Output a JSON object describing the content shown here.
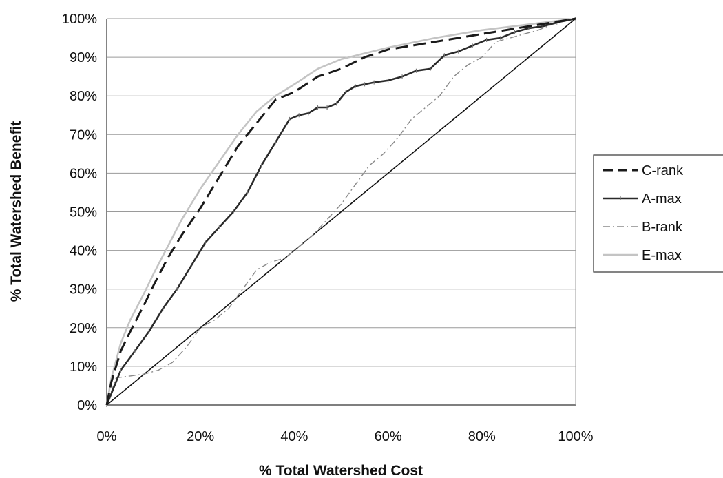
{
  "chart_data": {
    "type": "line",
    "title": "",
    "xlabel": "% Total Watershed Cost",
    "ylabel": "% Total Watershed Benefit",
    "xlim": [
      0,
      100
    ],
    "ylim": [
      0,
      100
    ],
    "xticks": [
      "0%",
      "20%",
      "40%",
      "60%",
      "80%",
      "100%"
    ],
    "yticks": [
      "0%",
      "10%",
      "20%",
      "30%",
      "40%",
      "50%",
      "60%",
      "70%",
      "80%",
      "90%",
      "100%"
    ],
    "grid": "horizontal",
    "legend_position": "right",
    "series": [
      {
        "name": "C-rank",
        "style": "dashed",
        "color": "#1a1a1a",
        "x": [
          0,
          1,
          3,
          5,
          8,
          10,
          13,
          16,
          20,
          24,
          28,
          32,
          36,
          40,
          45,
          50,
          55,
          60,
          70,
          80,
          90,
          100
        ],
        "y": [
          0,
          6,
          14,
          19,
          26,
          31,
          38,
          44,
          51,
          59,
          67,
          73,
          79,
          81,
          85,
          87,
          90,
          92,
          94,
          96,
          98,
          100
        ]
      },
      {
        "name": "A-max",
        "style": "solid-markers",
        "color": "#2a2a2a",
        "x": [
          0,
          3,
          6,
          9,
          12,
          15,
          18,
          21,
          24,
          27,
          30,
          33,
          36,
          39,
          41,
          43,
          45,
          47,
          49,
          51,
          53,
          55,
          57,
          60,
          63,
          66,
          69,
          72,
          75,
          78,
          81,
          84,
          87,
          90,
          93,
          96,
          100
        ],
        "y": [
          0,
          9,
          14,
          19,
          25,
          30,
          36,
          42,
          46,
          50,
          55,
          62,
          68,
          74,
          75,
          75.5,
          77,
          77,
          78,
          81,
          82.5,
          83,
          83.5,
          84,
          85,
          86.5,
          87,
          90.5,
          91.5,
          93,
          94.5,
          95,
          96.5,
          97.5,
          98,
          99,
          100
        ]
      },
      {
        "name": "B-rank",
        "style": "dashdot",
        "color": "#8a8a8a",
        "x": [
          0,
          2,
          5,
          8,
          11,
          14,
          17,
          20,
          23,
          26,
          29,
          32,
          35,
          38,
          41,
          44,
          47,
          50,
          53,
          56,
          59,
          62,
          65,
          68,
          71,
          74,
          77,
          80,
          83,
          86,
          89,
          92,
          95,
          100
        ],
        "y": [
          0,
          7,
          7.5,
          8,
          9,
          11,
          15,
          20,
          22,
          25,
          30,
          35,
          37,
          38,
          41,
          44,
          48,
          52,
          57,
          62,
          65,
          69,
          74,
          77,
          80,
          85,
          88,
          90,
          94,
          95,
          96,
          97,
          98.5,
          100
        ]
      },
      {
        "name": "E-max",
        "style": "solid",
        "color": "#c4c4c4",
        "x": [
          0,
          1,
          3,
          5,
          8,
          10,
          13,
          16,
          20,
          24,
          28,
          32,
          36,
          40,
          45,
          50,
          55,
          60,
          70,
          80,
          90,
          100
        ],
        "y": [
          0,
          7,
          16,
          22,
          29,
          34,
          41,
          48,
          56,
          63,
          70,
          76,
          80,
          83,
          87,
          89.5,
          91,
          92.5,
          95,
          97,
          98.5,
          100
        ]
      }
    ],
    "reference_line": {
      "x": [
        0,
        100
      ],
      "y": [
        0,
        100
      ],
      "color": "#111111"
    }
  }
}
